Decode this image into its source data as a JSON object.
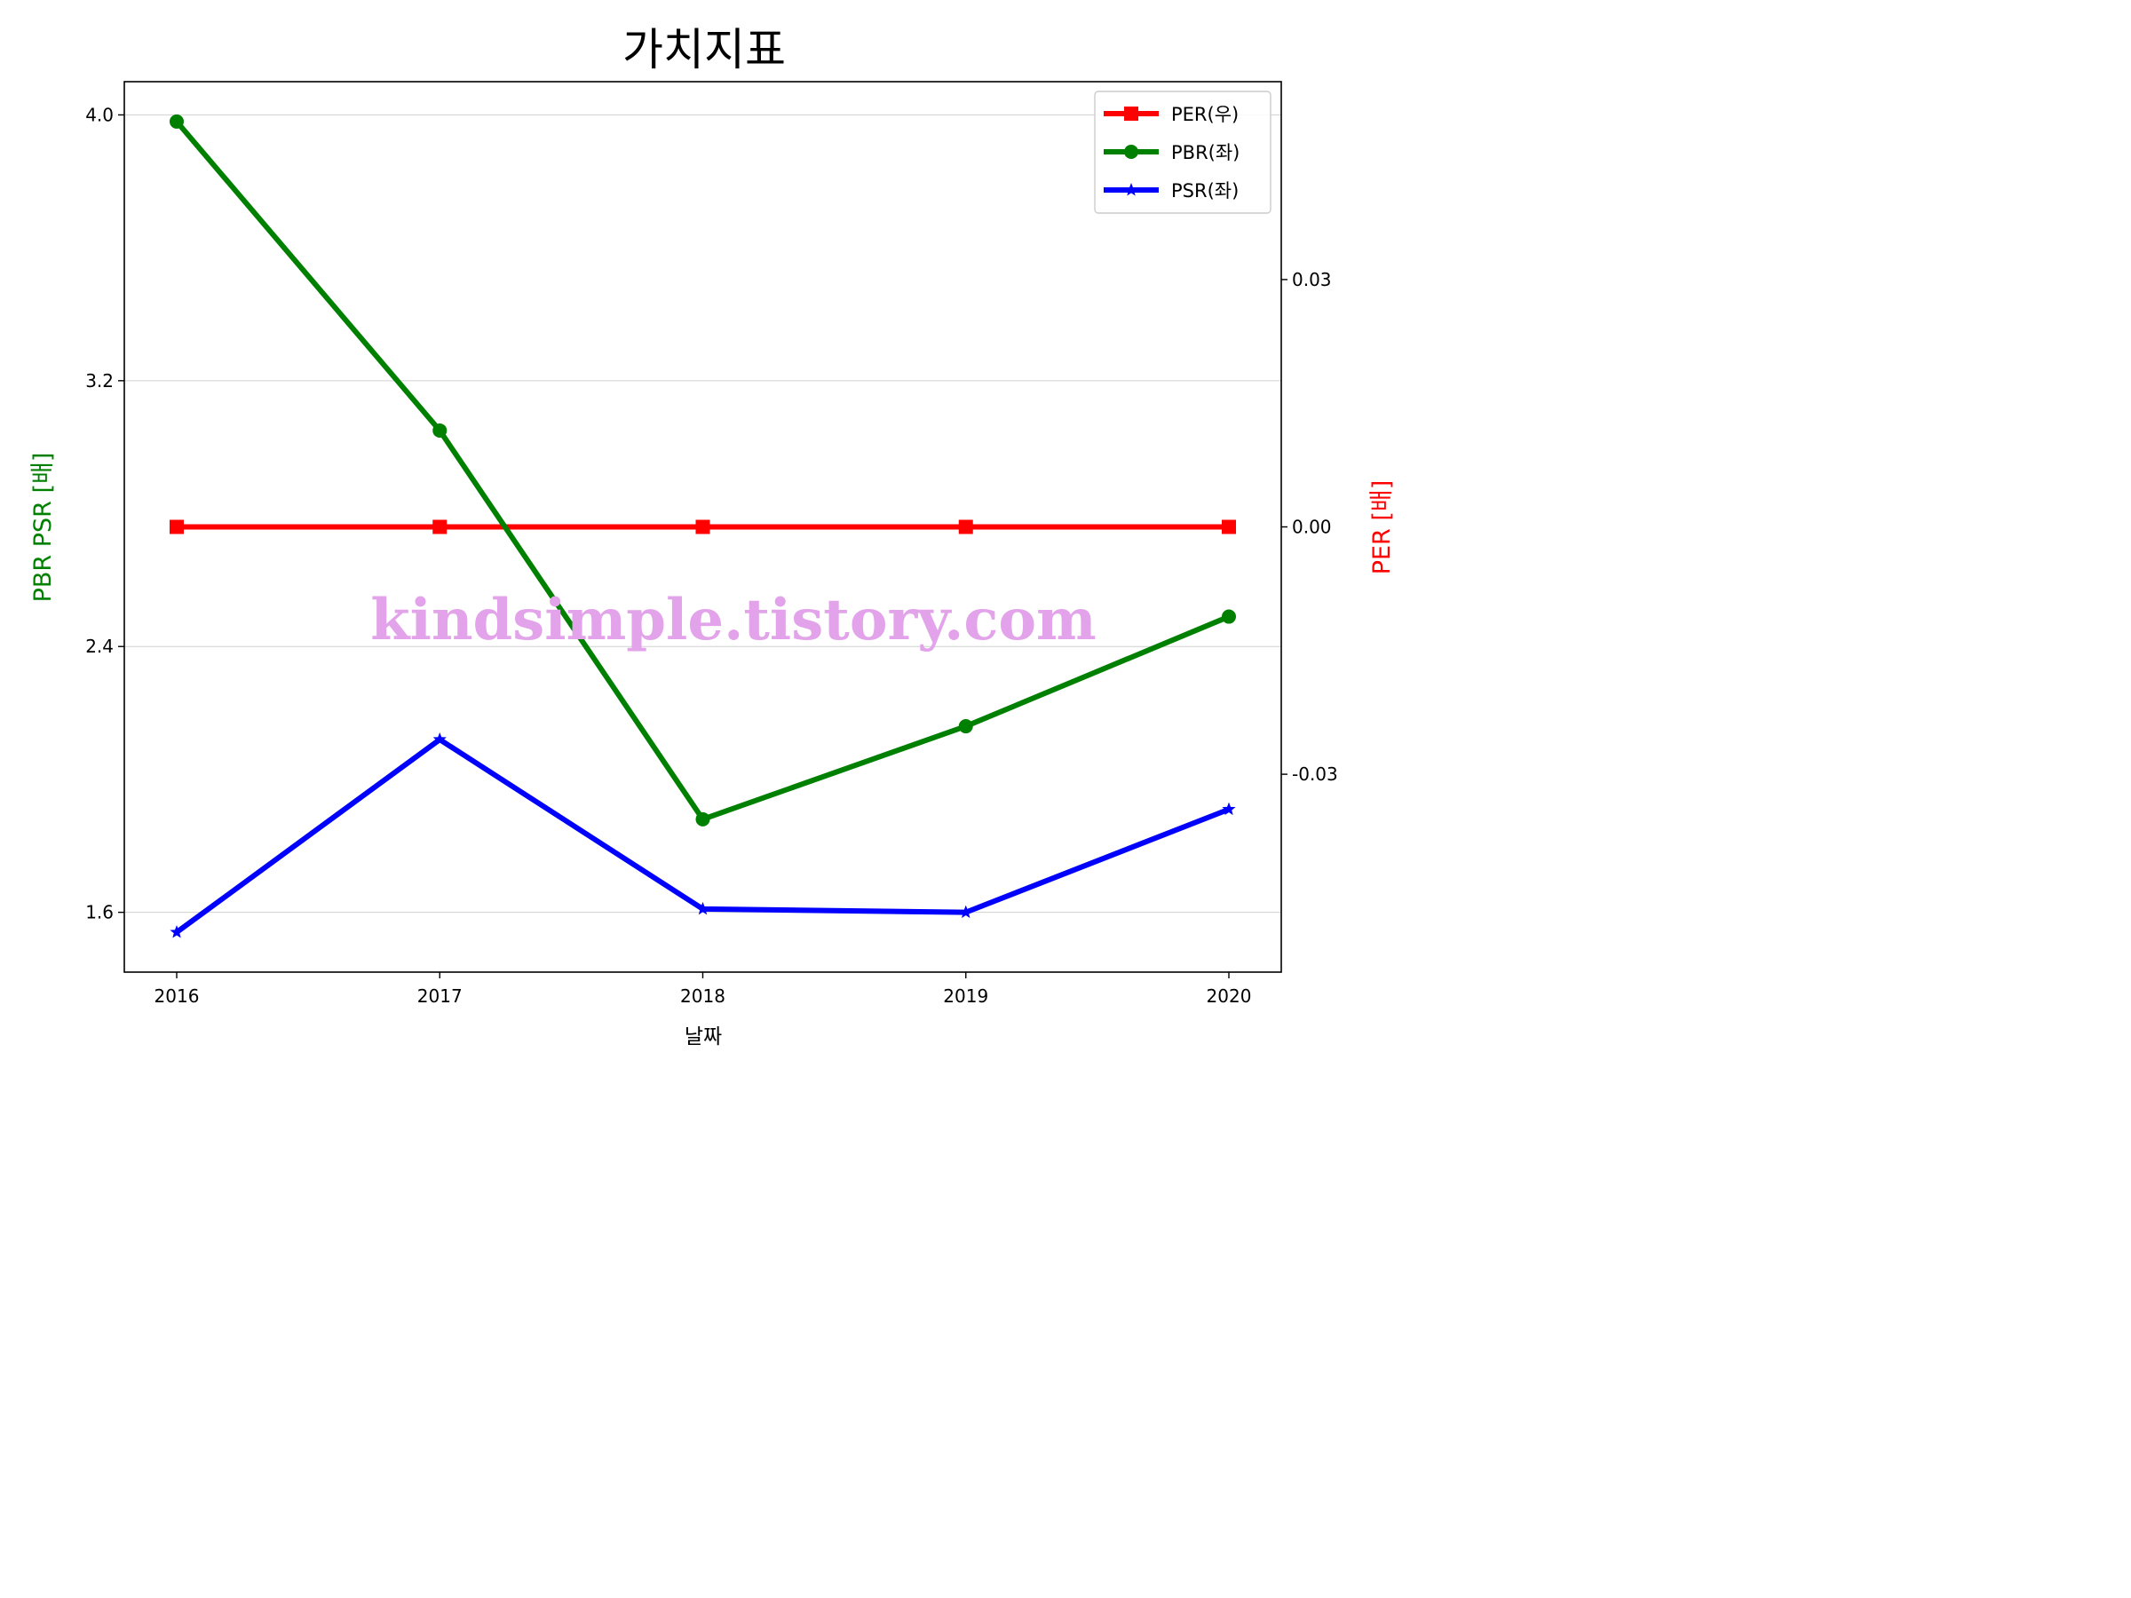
{
  "chart_data": {
    "type": "line",
    "title": "가치지표",
    "xlabel": "날짜",
    "ylabel_left": "PBR PSR [배]",
    "ylabel_right": "PER [배]",
    "categories": [
      "2016",
      "2017",
      "2018",
      "2019",
      "2020"
    ],
    "left_axis": {
      "ylim": [
        1.42,
        4.1
      ],
      "ticks": [
        1.6,
        2.4,
        3.2,
        4.0
      ],
      "tick_labels": [
        "1.6",
        "2.4",
        "3.2",
        "4.0"
      ],
      "grid": true
    },
    "right_axis": {
      "ylim": [
        -0.054,
        0.054
      ],
      "ticks": [
        -0.03,
        0.0,
        0.03
      ],
      "tick_labels": [
        "-0.03",
        "0.00",
        "0.03"
      ]
    },
    "series": [
      {
        "name": "PER(우)",
        "axis": "right",
        "color": "#ff0000",
        "marker": "square",
        "values": [
          0.0,
          0.0,
          0.0,
          0.0,
          0.0
        ]
      },
      {
        "name": "PBR(좌)",
        "axis": "left",
        "color": "#008000",
        "marker": "circle",
        "values": [
          3.98,
          3.05,
          1.88,
          2.16,
          2.49
        ]
      },
      {
        "name": "PSR(좌)",
        "axis": "left",
        "color": "#0000ff",
        "marker": "star",
        "values": [
          1.54,
          2.12,
          1.61,
          1.6,
          1.91
        ]
      }
    ],
    "legend_position": "upper-right",
    "watermark": "kindsimple.tistory.com"
  }
}
